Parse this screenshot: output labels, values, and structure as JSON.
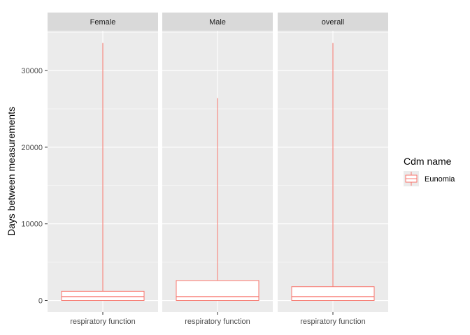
{
  "chart_data": {
    "type": "boxplot",
    "ylabel": "Days between measurements",
    "ylim": [
      -1500,
      35200
    ],
    "yticks": [
      0,
      10000,
      20000,
      30000
    ],
    "ytick_labels": [
      "0",
      "10000",
      "20000",
      "30000"
    ],
    "grid": true,
    "legend": {
      "title": "Cdm name",
      "position": "right",
      "entries": [
        {
          "name": "Eunomia",
          "color": "#F8766D"
        }
      ]
    },
    "panels": [
      {
        "strip": "Female",
        "category": "respiratory function",
        "series": "Eunomia",
        "min": 0,
        "q1": 0,
        "median": 500,
        "q3": 1200,
        "max": 33600
      },
      {
        "strip": "Male",
        "category": "respiratory function",
        "series": "Eunomia",
        "min": 0,
        "q1": 0,
        "median": 500,
        "q3": 2600,
        "max": 26400
      },
      {
        "strip": "overall",
        "category": "respiratory function",
        "series": "Eunomia",
        "min": 0,
        "q1": 0,
        "median": 500,
        "q3": 1800,
        "max": 33600
      }
    ],
    "colors": {
      "panel_bg": "#EBEBEB",
      "strip_bg": "#D9D9D9",
      "grid_major": "#FFFFFF",
      "box_stroke": "#F8766D"
    }
  }
}
